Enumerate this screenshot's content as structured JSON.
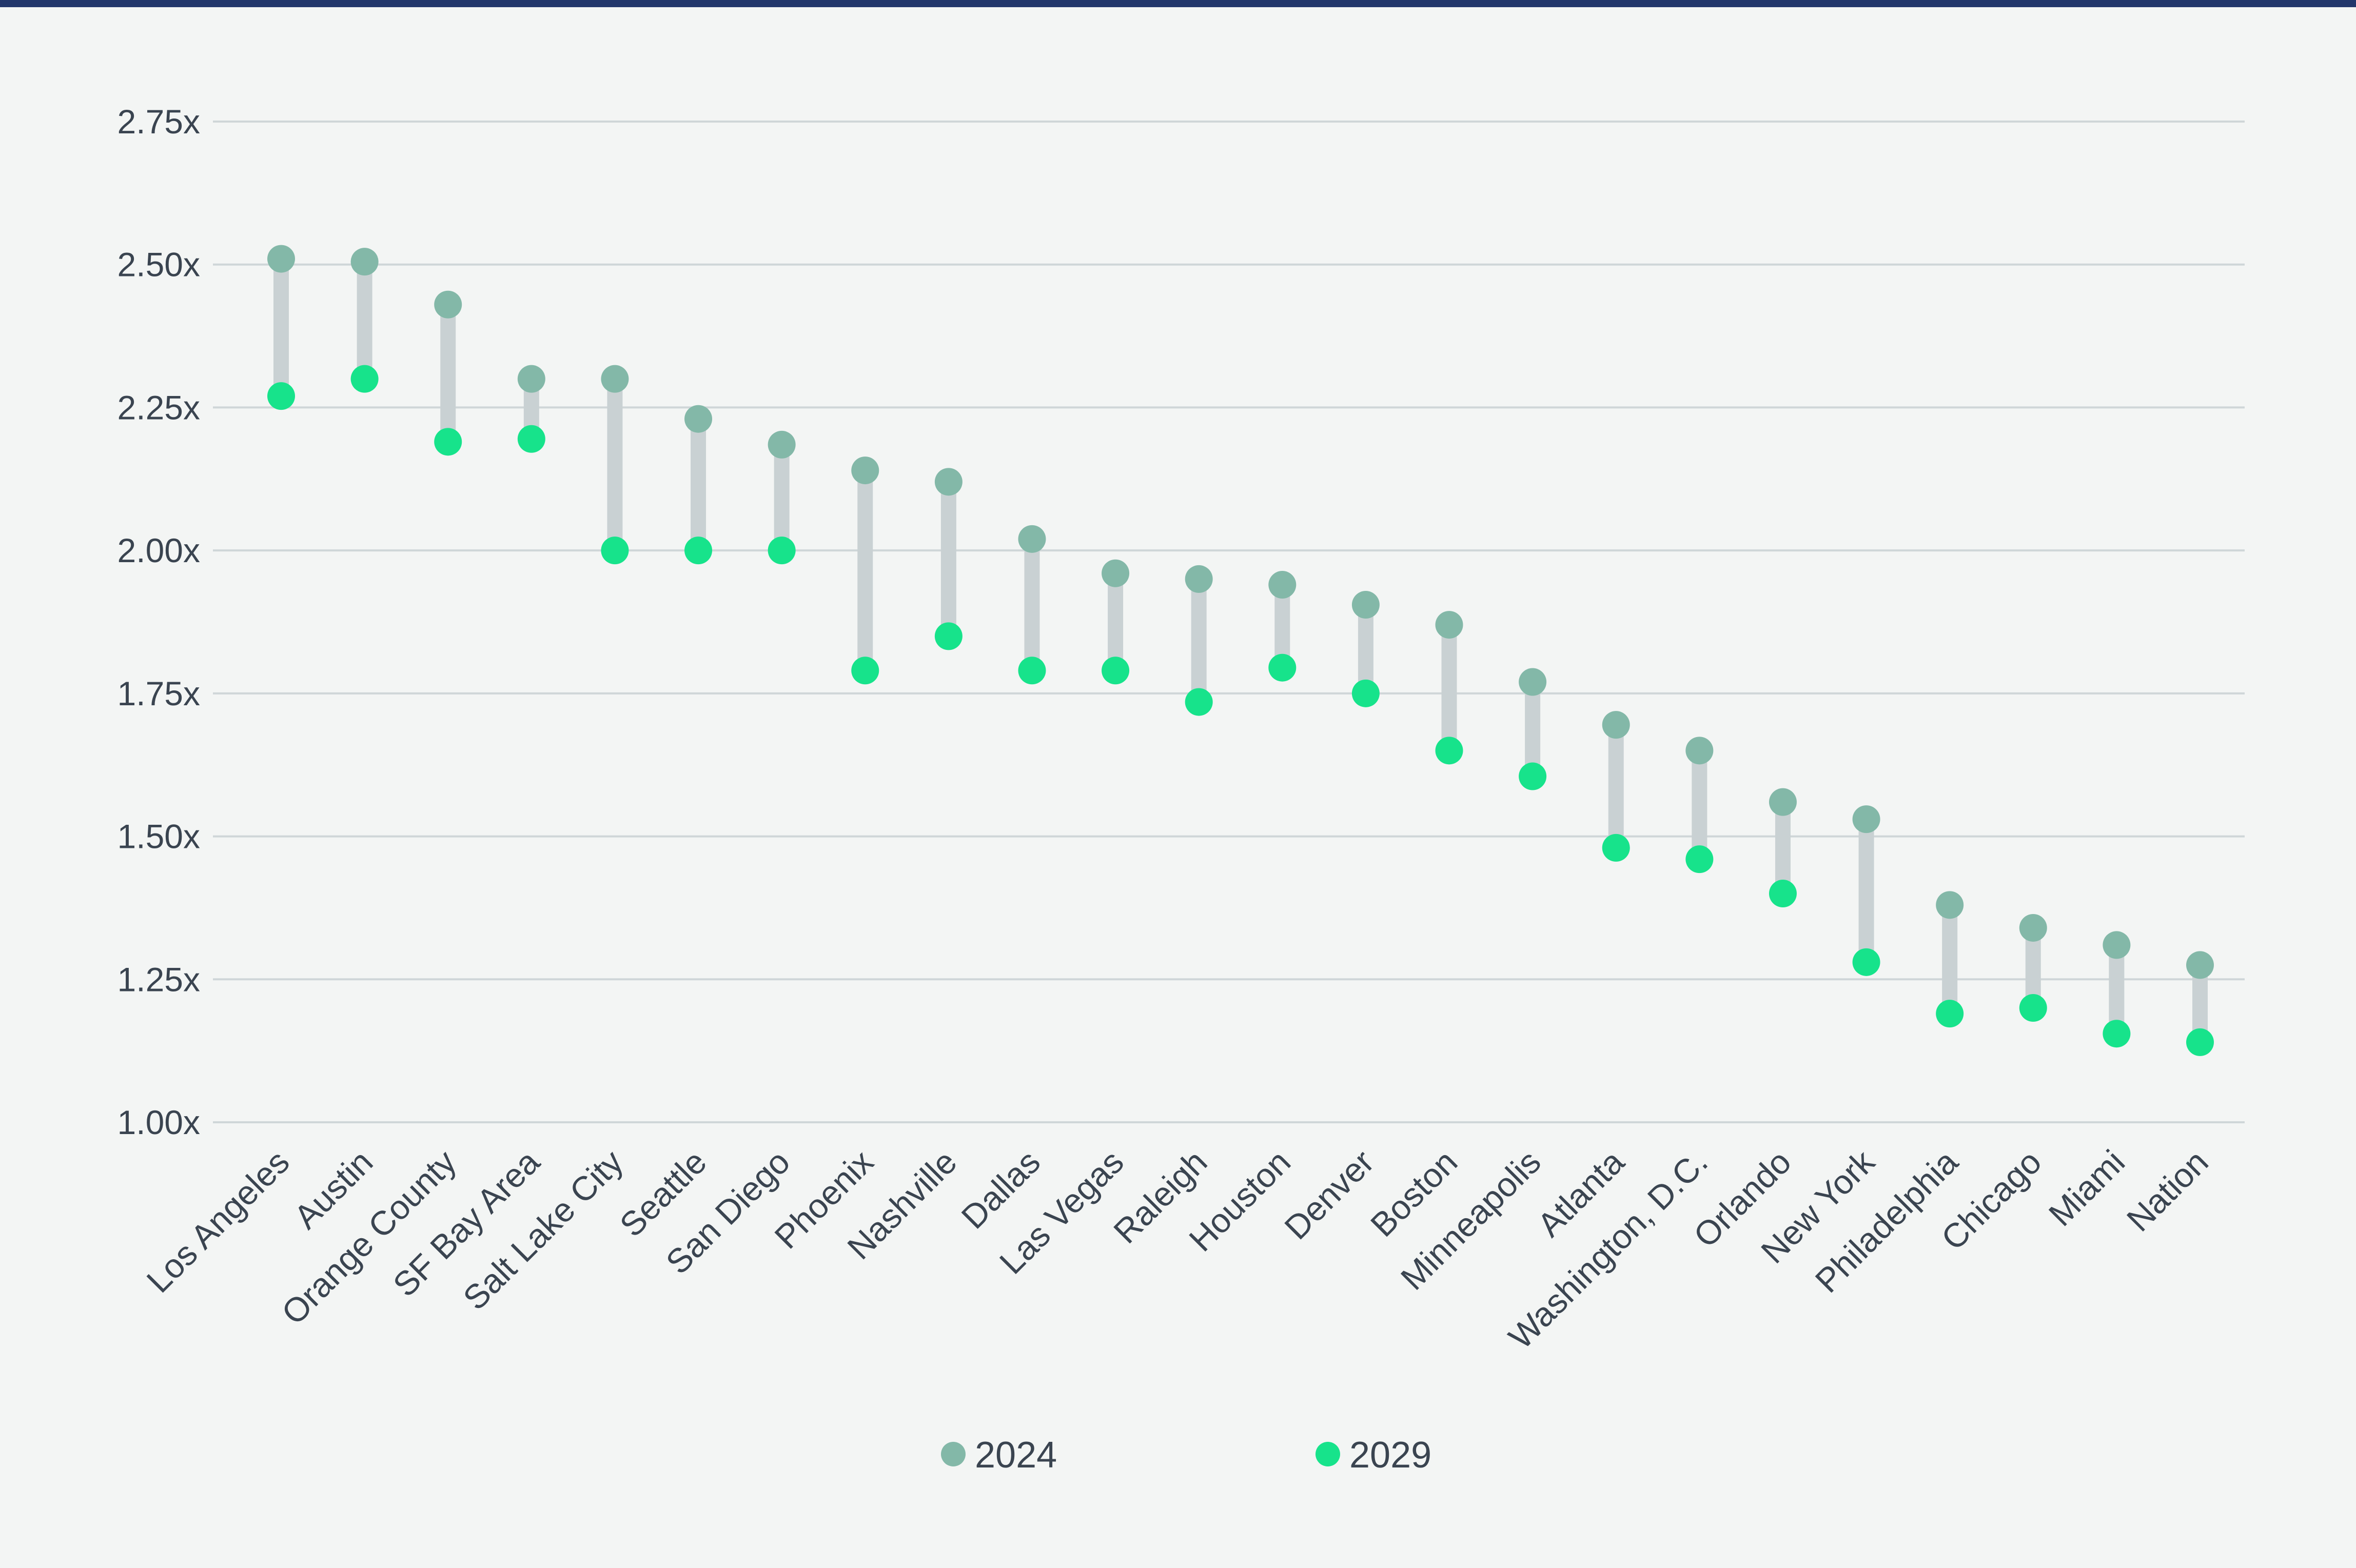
{
  "chart_data": {
    "type": "dumbbell",
    "title": "",
    "xlabel": "",
    "ylabel": "",
    "ylim": [
      1.0,
      2.75
    ],
    "y_ticks": [
      {
        "value": 1.0,
        "label": "1.00x"
      },
      {
        "value": 1.25,
        "label": "1.25x"
      },
      {
        "value": 1.5,
        "label": "1.50x"
      },
      {
        "value": 1.75,
        "label": "1.75x"
      },
      {
        "value": 2.0,
        "label": "2.00x"
      },
      {
        "value": 2.25,
        "label": "2.25x"
      },
      {
        "value": 2.5,
        "label": "2.50x"
      },
      {
        "value": 2.75,
        "label": "2.75x"
      }
    ],
    "grid": true,
    "legend_position": "bottom-center",
    "categories": [
      "Los Angeles",
      "Austin",
      "Orange County",
      "SF Bay Area",
      "Salt Lake City",
      "Seattle",
      "San Diego",
      "Phoenix",
      "Nashville",
      "Dallas",
      "Las Vegas",
      "Raleigh",
      "Houston",
      "Denver",
      "Boston",
      "Minneapolis",
      "Atlanta",
      "Washington, D.C.",
      "Orlando",
      "New York",
      "Philadelphia",
      "Chicago",
      "Miami",
      "Nation"
    ],
    "series": [
      {
        "name": "2024",
        "color": "#83b8a8",
        "values": [
          2.51,
          2.505,
          2.43,
          2.3,
          2.3,
          2.23,
          2.185,
          2.14,
          2.12,
          2.02,
          1.96,
          1.95,
          1.94,
          1.905,
          1.87,
          1.77,
          1.695,
          1.65,
          1.56,
          1.53,
          1.38,
          1.34,
          1.31,
          1.275
        ]
      },
      {
        "name": "2029",
        "color": "#17e38b",
        "values": [
          2.27,
          2.3,
          2.19,
          2.195,
          2.0,
          2.0,
          2.0,
          1.79,
          1.85,
          1.79,
          1.79,
          1.735,
          1.795,
          1.75,
          1.65,
          1.605,
          1.48,
          1.46,
          1.4,
          1.28,
          1.19,
          1.2,
          1.155,
          1.14
        ]
      }
    ],
    "colors": {
      "connector": "#c9d1d3",
      "grid": "#cfd6d8",
      "top_bar": "#22376b",
      "background": "#f3f5f4"
    }
  }
}
